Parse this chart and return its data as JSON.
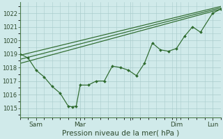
{
  "xlabel": "Pression niveau de la mer( hPa )",
  "ylim": [
    1014.3,
    1022.8
  ],
  "xlim": [
    0,
    100
  ],
  "yticks": [
    1015,
    1016,
    1017,
    1018,
    1019,
    1020,
    1021,
    1022
  ],
  "xtick_positions": [
    8,
    30,
    55,
    78,
    96
  ],
  "xtick_labels": [
    "Sam",
    "Mar",
    "",
    "Dim",
    "Lun"
  ],
  "bg_color": "#d0eaea",
  "grid_color": "#aacccc",
  "line_color": "#2d6a2d",
  "smooth1": {
    "x": [
      0,
      100
    ],
    "y": [
      1018.9,
      1022.5
    ]
  },
  "smooth2": {
    "x": [
      0,
      100
    ],
    "y": [
      1018.3,
      1022.3
    ]
  },
  "smooth3": {
    "x": [
      0,
      100
    ],
    "y": [
      1018.6,
      1022.4
    ]
  },
  "wiggly": {
    "x": [
      0,
      4,
      8,
      12,
      16,
      20,
      24,
      26,
      28,
      30,
      34,
      38,
      42,
      46,
      50,
      54,
      58,
      62,
      66,
      70,
      74,
      78,
      82,
      86,
      90,
      96,
      100
    ],
    "y": [
      1019.0,
      1018.7,
      1017.8,
      1017.3,
      1016.6,
      1016.1,
      1015.15,
      1015.1,
      1015.15,
      1016.7,
      1016.7,
      1017.0,
      1017.0,
      1018.1,
      1018.0,
      1017.8,
      1017.4,
      1018.3,
      1019.8,
      1019.3,
      1019.2,
      1019.4,
      1020.3,
      1021.0,
      1020.6,
      1022.0,
      1022.3
    ]
  }
}
